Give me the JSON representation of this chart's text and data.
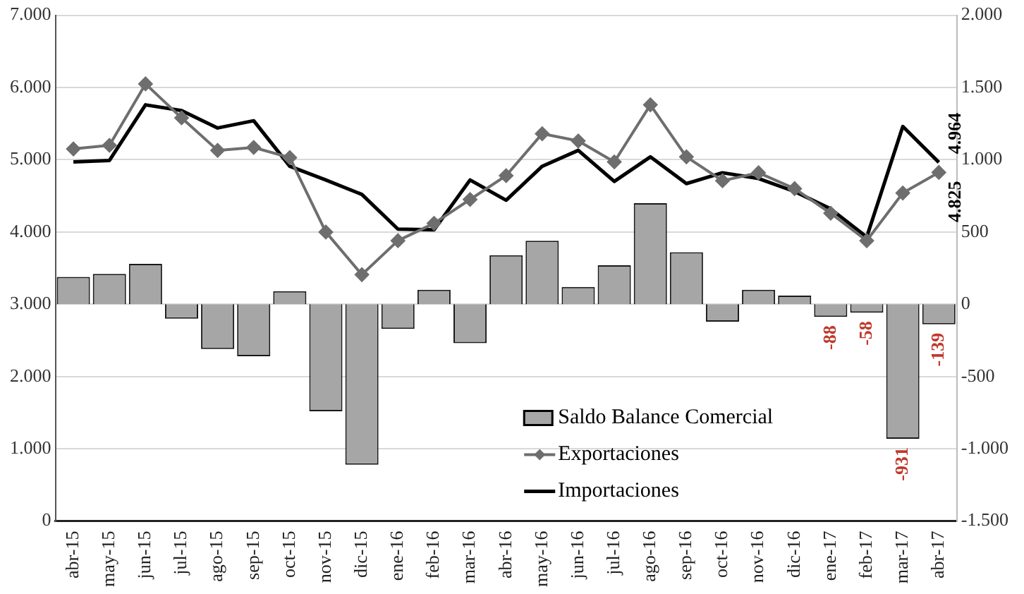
{
  "chart_data": {
    "type": "bar",
    "categories": [
      "abr-15",
      "may-15",
      "jun-15",
      "jul-15",
      "ago-15",
      "sep-15",
      "oct-15",
      "nov-15",
      "dic-15",
      "ene-16",
      "feb-16",
      "mar-16",
      "abr-16",
      "may-16",
      "jun-16",
      "jul-16",
      "ago-16",
      "sep-16",
      "oct-16",
      "nov-16",
      "dic-16",
      "ene-17",
      "feb-17",
      "mar-17",
      "abr-17"
    ],
    "series": [
      {
        "name": "Saldo Balance Comercial",
        "axis": "y2",
        "color": "#a6a6a6",
        "values": [
          190,
          210,
          280,
          -100,
          -310,
          -360,
          90,
          -740,
          -1110,
          -170,
          100,
          -270,
          340,
          440,
          120,
          270,
          700,
          360,
          -120,
          100,
          60,
          -88,
          -58,
          -931,
          -139
        ],
        "value_labels": [
          null,
          null,
          null,
          null,
          null,
          null,
          null,
          null,
          null,
          null,
          null,
          null,
          null,
          null,
          null,
          null,
          null,
          null,
          null,
          null,
          null,
          "-88",
          "-58",
          "-931",
          "-139"
        ]
      },
      {
        "name": "Exportaciones",
        "type": "line",
        "color": "#6e6e6e",
        "marker": "diamond",
        "values": [
          5150,
          5200,
          6050,
          5580,
          5130,
          5170,
          5030,
          4000,
          3410,
          3880,
          4120,
          4450,
          4780,
          5360,
          5260,
          4970,
          5760,
          5040,
          4710,
          4820,
          4600,
          4260,
          3880,
          4540,
          4825
        ],
        "value_labels": [
          null,
          null,
          null,
          null,
          null,
          null,
          null,
          null,
          null,
          null,
          null,
          null,
          null,
          null,
          null,
          null,
          null,
          null,
          null,
          null,
          null,
          null,
          null,
          null,
          "4.825"
        ]
      },
      {
        "name": "Importaciones",
        "type": "line",
        "color": "#000000",
        "marker": "none",
        "values": [
          4970,
          4990,
          5760,
          5680,
          5440,
          5540,
          4910,
          4720,
          4520,
          4040,
          4030,
          4720,
          4440,
          4910,
          5130,
          4700,
          5040,
          4670,
          4820,
          4740,
          4560,
          4320,
          3930,
          5460,
          4964
        ],
        "value_labels": [
          null,
          null,
          null,
          null,
          null,
          null,
          null,
          null,
          null,
          null,
          null,
          null,
          null,
          null,
          null,
          null,
          null,
          null,
          null,
          null,
          null,
          null,
          null,
          null,
          "4.964"
        ]
      }
    ],
    "ylim": [
      0,
      7000
    ],
    "yticks": [
      {
        "value": 0,
        "label": "0"
      },
      {
        "value": 1000,
        "label": "1.000"
      },
      {
        "value": 2000,
        "label": "2.000"
      },
      {
        "value": 3000,
        "label": "3.000"
      },
      {
        "value": 4000,
        "label": "4.000"
      },
      {
        "value": 5000,
        "label": "5.000"
      },
      {
        "value": 6000,
        "label": "6.000"
      },
      {
        "value": 7000,
        "label": "7.000"
      }
    ],
    "y2lim": [
      -1500,
      2000
    ],
    "y2ticks": [
      {
        "value": -1500,
        "label": "-1.500"
      },
      {
        "value": -1000,
        "label": "-1.000"
      },
      {
        "value": -500,
        "label": "-500"
      },
      {
        "value": 0,
        "label": "0"
      },
      {
        "value": 500,
        "label": "500"
      },
      {
        "value": 1000,
        "label": "1.000"
      },
      {
        "value": 1500,
        "label": "1.500"
      },
      {
        "value": 2000,
        "label": "2.000"
      }
    ],
    "grid": "y",
    "legend": "bottom right"
  }
}
